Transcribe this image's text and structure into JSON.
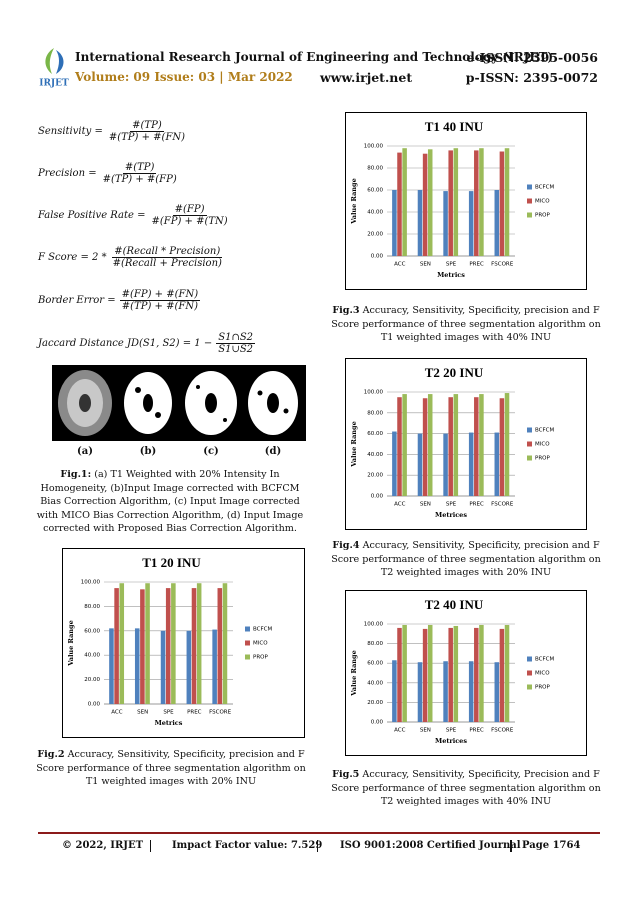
{
  "header": {
    "logo": "IRJET",
    "journal": "International Research Journal of Engineering and Technology (IRJET)",
    "eissn": "e-ISSN: 2395-0056",
    "volume": "Volume: 09 Issue: 03 | Mar 2022",
    "website": "www.irjet.net",
    "pissn": "p-ISSN: 2395-0072"
  },
  "formulas": [
    {
      "lhs": "Sensitivity =",
      "num": "#(TP)",
      "den": "#(TP) + #(FN)"
    },
    {
      "lhs": "Precision =",
      "num": "#(TP)",
      "den": "#(TP) + #(FP)"
    },
    {
      "lhs": "False Positive Rate =",
      "num": "#(FP)",
      "den": "#(FP) + #(TN)"
    },
    {
      "lhs": "F Score = 2 *",
      "num": "#(Recall * Precision)",
      "den": "#(Recall + Precision)"
    },
    {
      "lhs": "Border Error =",
      "num": "#(FP) + #(FN)",
      "den": "#(TP) + #(FN)"
    },
    {
      "lhs": "Jaccard Distance JD(S1, S2) = 1 −",
      "num": "S1∩S2",
      "den": "S1∪S2"
    }
  ],
  "figure1": {
    "panels": [
      "(a)",
      "(b)",
      "(c)",
      "(d)"
    ],
    "caption_label": "Fig.1:",
    "caption": "(a) T1 Weighted with 20% Intensity In Homogeneity, (b)Input Image corrected with BCFCM Bias Correction Algorithm, (c) Input Image corrected with MICO Bias Correction Algorithm, (d) Input Image corrected with Proposed Bias Correction Algorithm."
  },
  "chart_data": [
    {
      "type": "bar",
      "title": "T1 20 INU",
      "y_label": "Value Range",
      "x_label": "Metrics",
      "categories": [
        "ACC",
        "SEN",
        "SPE",
        "PREC",
        "FSCORE"
      ],
      "series": [
        {
          "name": "BCFCM",
          "color": "#4f81bd",
          "values": [
            62,
            62,
            60,
            60,
            61
          ]
        },
        {
          "name": "MICO",
          "color": "#c0504d",
          "values": [
            95,
            94,
            95,
            95,
            95
          ]
        },
        {
          "name": "PROP",
          "color": "#9bbb59",
          "values": [
            99,
            99,
            99,
            99,
            99
          ]
        }
      ],
      "ylim": [
        0,
        100
      ],
      "yticks": [
        {
          "value": 0,
          "label": "0.00"
        },
        {
          "value": 20,
          "label": "20.00"
        },
        {
          "value": 40,
          "label": "40.00"
        },
        {
          "value": 60,
          "label": "60.00"
        },
        {
          "value": 80,
          "label": "80.00"
        },
        {
          "value": 100,
          "label": "100.00"
        }
      ],
      "grid": true,
      "legend": "right",
      "caption_label": "Fig.2",
      "caption": "Accuracy, Sensitivity, Specificity, precision and F Score performance of three segmentation algorithm on T1 weighted images with 20% INU"
    },
    {
      "type": "bar",
      "title": "T1 40 INU",
      "y_label": "Value Range",
      "x_label": "Metrics",
      "categories": [
        "ACC",
        "SEN",
        "SPE",
        "PREC",
        "FSCORE"
      ],
      "series": [
        {
          "name": "BCFCM",
          "color": "#4f81bd",
          "values": [
            60,
            60,
            59,
            59,
            60
          ]
        },
        {
          "name": "MICO",
          "color": "#c0504d",
          "values": [
            94,
            93,
            96,
            96,
            95
          ]
        },
        {
          "name": "PROP",
          "color": "#9bbb59",
          "values": [
            98,
            97,
            98,
            98,
            98
          ]
        }
      ],
      "ylim": [
        0,
        100
      ],
      "yticks": [
        {
          "value": 0,
          "label": "0.00"
        },
        {
          "value": 20,
          "label": "20.00"
        },
        {
          "value": 40,
          "label": "40.00"
        },
        {
          "value": 60,
          "label": "60.00"
        },
        {
          "value": 80,
          "label": "80.00"
        },
        {
          "value": 100,
          "label": "100.00"
        }
      ],
      "grid": true,
      "legend": "right",
      "caption_label": "Fig.3",
      "caption": "Accuracy, Sensitivity, Specificity, precision and F Score performance of three segmentation algorithm on T1 weighted images with 40% INU"
    },
    {
      "type": "bar",
      "title": "T2 20 INU",
      "y_label": "Value Range",
      "x_label": "Metrices",
      "categories": [
        "ACC",
        "SEN",
        "SPE",
        "PREC",
        "FSCORE"
      ],
      "series": [
        {
          "name": "BCFCM",
          "color": "#4f81bd",
          "values": [
            62,
            60,
            60,
            61,
            61
          ]
        },
        {
          "name": "MICO",
          "color": "#c0504d",
          "values": [
            95,
            94,
            95,
            95,
            94
          ]
        },
        {
          "name": "PROP",
          "color": "#9bbb59",
          "values": [
            98,
            98,
            98,
            98,
            99
          ]
        }
      ],
      "ylim": [
        0,
        100
      ],
      "yticks": [
        {
          "value": 0,
          "label": "0.00"
        },
        {
          "value": 20,
          "label": "20.00"
        },
        {
          "value": 40,
          "label": "40.00"
        },
        {
          "value": 60,
          "label": "60.00"
        },
        {
          "value": 80,
          "label": "80.00"
        },
        {
          "value": 100,
          "label": "100.00"
        }
      ],
      "grid": true,
      "legend": "right",
      "caption_label": "Fig.4",
      "caption": "Accuracy, Sensitivity, Specificity, precision and F Score performance of three segmentation algorithm on T2 weighted images with 20% INU"
    },
    {
      "type": "bar",
      "title": "T2 40 INU",
      "y_label": "Value Range",
      "x_label": "Metrices",
      "categories": [
        "ACC",
        "SEN",
        "SPE",
        "PREC",
        "FSCORE"
      ],
      "series": [
        {
          "name": "BCFCM",
          "color": "#4f81bd",
          "values": [
            63,
            61,
            62,
            62,
            61
          ]
        },
        {
          "name": "MICO",
          "color": "#c0504d",
          "values": [
            96,
            95,
            96,
            96,
            95
          ]
        },
        {
          "name": "PROP",
          "color": "#9bbb59",
          "values": [
            99,
            99,
            98,
            99,
            99
          ]
        }
      ],
      "ylim": [
        0,
        100
      ],
      "yticks": [
        {
          "value": 0,
          "label": "0.00"
        },
        {
          "value": 20,
          "label": "20.00"
        },
        {
          "value": 40,
          "label": "40.00"
        },
        {
          "value": 60,
          "label": "60.00"
        },
        {
          "value": 80,
          "label": "80.00"
        },
        {
          "value": 100,
          "label": "100.00"
        }
      ],
      "grid": true,
      "legend": "right",
      "caption_label": "Fig.5",
      "caption": "Accuracy, Sensitivity, Specificity, Precision and F Score performance of three segmentation algorithm on T2 weighted images with 40% INU"
    }
  ],
  "footer": {
    "copyright": "© 2022, IRJET",
    "impact": "Impact Factor value: 7.529",
    "iso": "ISO 9001:2008 Certified Journal",
    "page": "Page 1764"
  }
}
